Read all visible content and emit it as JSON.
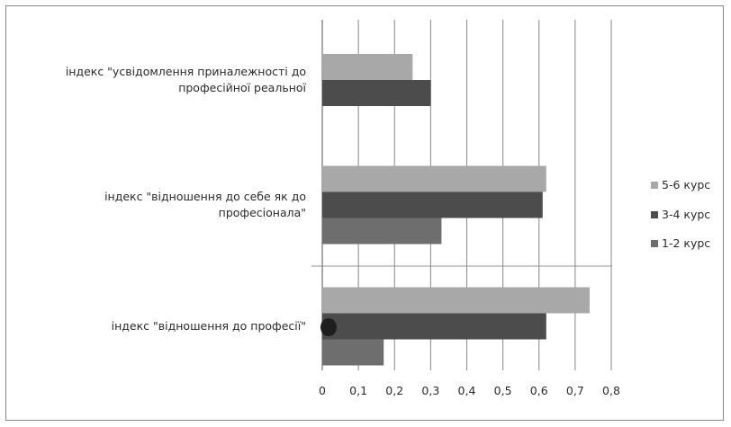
{
  "chart_data": {
    "type": "bar",
    "orientation": "horizontal",
    "categories": [
      [
        "індекс \"усвідомлення приналежності до",
        "професійної реальної"
      ],
      [
        "індекс \"відношення до себе як до",
        "професіонала\""
      ],
      [
        "індекс \"відношення до професії\""
      ]
    ],
    "series": [
      {
        "name": "5-6 курс",
        "values": [
          0.25,
          0.62,
          0.74
        ],
        "color": "#a8a8a8"
      },
      {
        "name": "3-4 курс",
        "values": [
          0.3,
          0.61,
          0.62
        ],
        "color": "#4c4c4c"
      },
      {
        "name": "1-2 курс",
        "values": [
          null,
          0.33,
          0.17
        ],
        "color": "#6e6e6e"
      }
    ],
    "xlim": [
      0,
      0.8
    ],
    "x_ticks": [
      "0",
      "0,1",
      "0,2",
      "0,3",
      "0,4",
      "0,5",
      "0,6",
      "0,7",
      "0,8"
    ],
    "grid": "vertical",
    "legend_position": "right",
    "legend_order": [
      "5-6 курс",
      "3-4 курс",
      "1-2 курс"
    ]
  }
}
